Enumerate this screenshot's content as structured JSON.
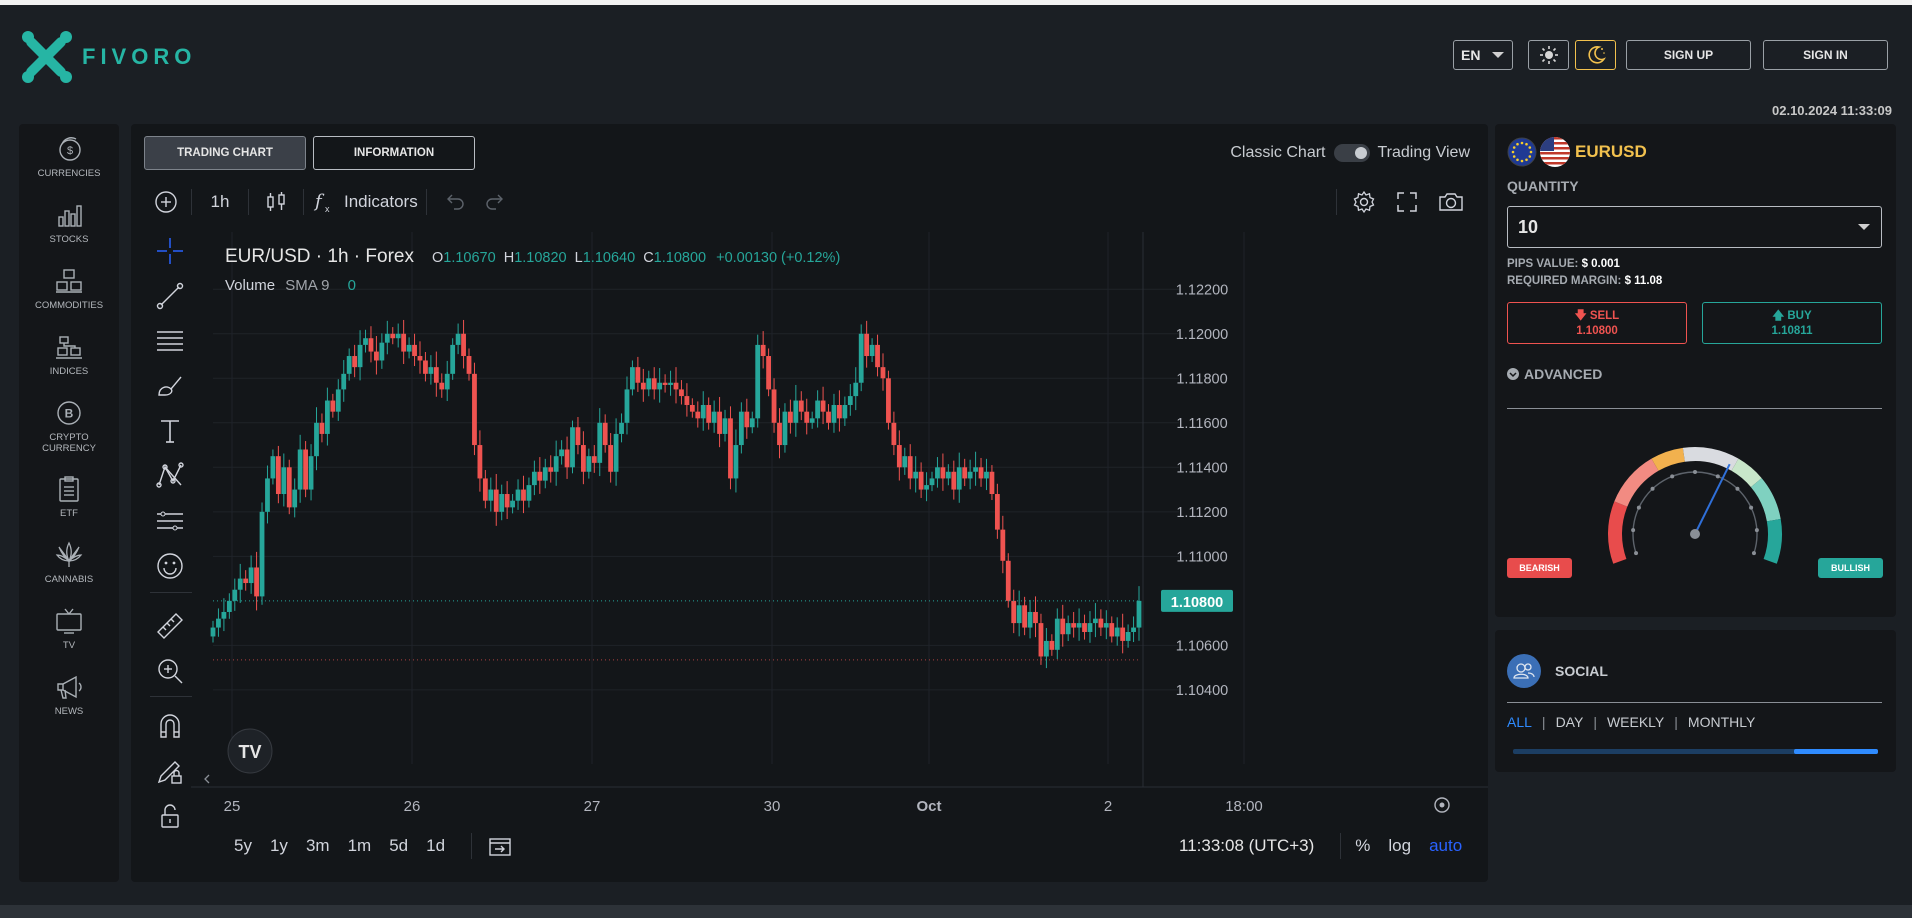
{
  "brand": {
    "name": "FIVORO",
    "logo_icon": "fivoro-x-logo",
    "accent": "#26b5a4"
  },
  "header": {
    "language": "EN",
    "theme_light_icon": "sun-icon",
    "theme_dark_icon": "moon-icon",
    "sign_up": "SIGN UP",
    "sign_in": "SIGN IN",
    "datetime": "02.10.2024 11:33:09"
  },
  "sidebar": {
    "items": [
      {
        "label": "CURRENCIES",
        "icon": "dollar-coins-icon"
      },
      {
        "label": "STOCKS",
        "icon": "bar-chart-icon"
      },
      {
        "label": "COMMODITIES",
        "icon": "boxes-icon"
      },
      {
        "label": "INDICES",
        "icon": "indices-icon"
      },
      {
        "label1": "CRYPTO",
        "label2": "CURRENCY",
        "icon": "bitcoin-icon"
      },
      {
        "label": "ETF",
        "icon": "clipboard-icon"
      },
      {
        "label": "CANNABIS",
        "icon": "cannabis-leaf-icon"
      },
      {
        "label": "TV",
        "icon": "tv-icon"
      },
      {
        "label": "NEWS",
        "icon": "megaphone-icon"
      }
    ]
  },
  "chart_tabs": {
    "trading_chart": "TRADING CHART",
    "information": "INFORMATION"
  },
  "view_toggle": {
    "classic": "Classic Chart",
    "tradingview": "Trading View"
  },
  "toolbar": {
    "interval": "1h",
    "indicators": "Indicators"
  },
  "legend": {
    "symbol": "EUR/USD · 1h · Forex",
    "o_label": "O",
    "o": "1.10670",
    "h_label": "H",
    "h": "1.10820",
    "l_label": "L",
    "l": "1.10640",
    "c_label": "C",
    "c": "1.10800",
    "change": "+0.00130 (+0.12%)",
    "volume_label": "Volume",
    "sma_label": "SMA 9",
    "volume_value": "0"
  },
  "price_axis": [
    "1.12200",
    "1.12000",
    "1.11800",
    "1.11600",
    "1.11400",
    "1.11200",
    "1.11000",
    "1.10600",
    "1.10400"
  ],
  "last_price": "1.10800",
  "time_axis": [
    "25",
    "26",
    "27",
    "30",
    "Oct",
    "2",
    "18:00"
  ],
  "bottom_bar": {
    "ranges": [
      "5y",
      "1y",
      "3m",
      "1m",
      "5d",
      "1d"
    ],
    "clock": "11:33:08 (UTC+3)",
    "percent": "%",
    "log": "log",
    "auto": "auto"
  },
  "chart_data": {
    "type": "candlestick",
    "symbol": "EUR/USD",
    "interval": "1h",
    "ylim": [
      1.1035,
      1.123
    ],
    "colors": {
      "up": "#26a69a",
      "down": "#ef5350"
    },
    "closes": [
      1.1068,
      1.1072,
      1.1075,
      1.108,
      1.1085,
      1.109,
      1.1088,
      1.1095,
      1.1082,
      1.112,
      1.1135,
      1.1145,
      1.1128,
      1.114,
      1.1122,
      1.113,
      1.1148,
      1.113,
      1.1145,
      1.116,
      1.1155,
      1.117,
      1.1165,
      1.1175,
      1.1182,
      1.119,
      1.1185,
      1.1195,
      1.1198,
      1.1192,
      1.1188,
      1.1196,
      1.12,
      1.1198,
      1.12,
      1.1192,
      1.1195,
      1.119,
      1.1188,
      1.1182,
      1.1185,
      1.1178,
      1.1175,
      1.1182,
      1.1195,
      1.12,
      1.119,
      1.1182,
      1.115,
      1.1135,
      1.1125,
      1.113,
      1.112,
      1.1128,
      1.1122,
      1.1125,
      1.113,
      1.1125,
      1.1132,
      1.1138,
      1.1134,
      1.114,
      1.1138,
      1.1145,
      1.1148,
      1.114,
      1.1158,
      1.115,
      1.1138,
      1.1145,
      1.1142,
      1.116,
      1.115,
      1.1138,
      1.1155,
      1.116,
      1.1175,
      1.1185,
      1.1178,
      1.1175,
      1.118,
      1.1175,
      1.1178,
      1.1177,
      1.1178,
      1.1175,
      1.1172,
      1.1168,
      1.1165,
      1.1162,
      1.1168,
      1.116,
      1.1165,
      1.1155,
      1.1162,
      1.1135,
      1.115,
      1.1165,
      1.1158,
      1.1162,
      1.1195,
      1.119,
      1.1175,
      1.116,
      1.115,
      1.1165,
      1.116,
      1.117,
      1.1165,
      1.116,
      1.1162,
      1.117,
      1.1165,
      1.116,
      1.1168,
      1.1162,
      1.1168,
      1.1172,
      1.1178,
      1.12,
      1.119,
      1.1195,
      1.1185,
      1.118,
      1.116,
      1.115,
      1.114,
      1.1145,
      1.1135,
      1.1138,
      1.113,
      1.1132,
      1.1135,
      1.114,
      1.1135,
      1.1138,
      1.113,
      1.114,
      1.1135,
      1.1138,
      1.114,
      1.1135,
      1.1138,
      1.1128,
      1.1112,
      1.1098,
      1.108,
      1.107,
      1.1078,
      1.1068,
      1.1075,
      1.107,
      1.1055,
      1.1062,
      1.1058,
      1.1072,
      1.1065,
      1.107,
      1.1068,
      1.107,
      1.1066,
      1.107,
      1.1072,
      1.1068,
      1.107,
      1.1064,
      1.1068,
      1.1062,
      1.1066,
      1.1068,
      1.108
    ]
  },
  "trade": {
    "symbol": "EURUSD",
    "quantity_label": "QUANTITY",
    "quantity": "10",
    "pips_label": "PIPS VALUE:",
    "pips_value": "$ 0.001",
    "margin_label": "REQUIRED MARGIN:",
    "margin_value": "$ 11.08",
    "sell_label": "SELL",
    "sell_price": "1.10800",
    "buy_label": "BUY",
    "buy_price": "1.10811",
    "advanced": "ADVANCED",
    "bearish": "BEARISH",
    "bullish": "BULLISH",
    "sentiment_needle": 0.62
  },
  "social": {
    "title": "SOCIAL",
    "filters": [
      "ALL",
      "DAY",
      "WEEKLY",
      "MONTHLY"
    ],
    "progress": 0.7
  }
}
